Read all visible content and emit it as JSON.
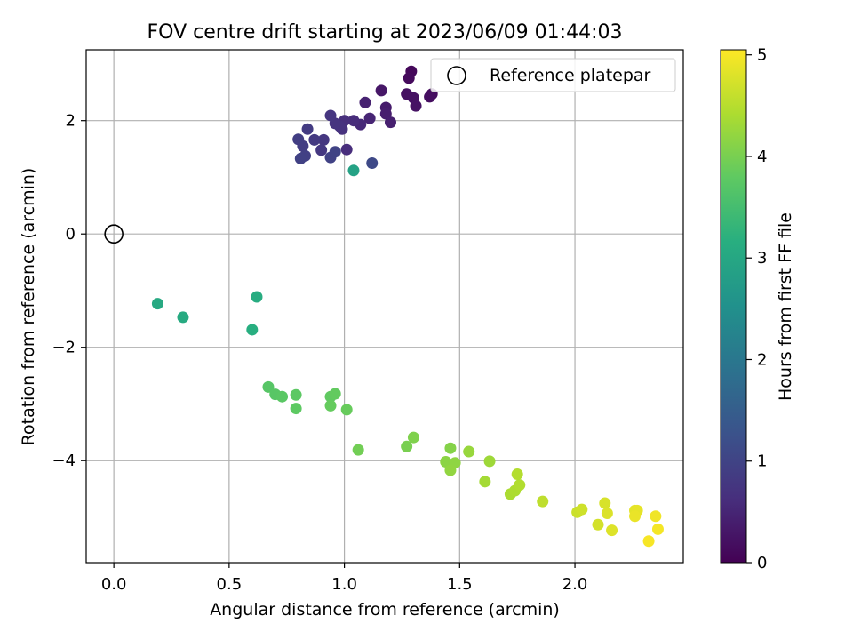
{
  "chart_data": {
    "type": "scatter",
    "title": "FOV centre drift starting at 2023/06/09 01:44:03",
    "xlabel": "Angular distance from reference (arcmin)",
    "ylabel": "Rotation from reference (arcmin)",
    "xlim": [
      -0.12,
      2.47
    ],
    "ylim": [
      -5.8,
      3.25
    ],
    "xticks": [
      0.0,
      0.5,
      1.0,
      1.5,
      2.0
    ],
    "xtick_labels": [
      "0.0",
      "0.5",
      "1.0",
      "1.5",
      "2.0"
    ],
    "yticks": [
      -4,
      -2,
      0,
      2
    ],
    "ytick_labels": [
      "−4",
      "−2",
      "0",
      "2"
    ],
    "grid": true,
    "legend": {
      "placement": "top-right",
      "entries": [
        "Reference platepar"
      ]
    },
    "reference": {
      "x": 0.0,
      "y": 0.0
    },
    "colorbar": {
      "label": "Hours from first FF file",
      "range": [
        0,
        5.05
      ],
      "ticks": [
        0,
        1,
        2,
        3,
        4,
        5
      ],
      "tick_labels": [
        "0",
        "1",
        "2",
        "3",
        "4",
        "5"
      ],
      "colormap": "viridis"
    },
    "points": [
      {
        "x": 1.29,
        "y": 2.87,
        "t": 0.1
      },
      {
        "x": 1.28,
        "y": 2.75,
        "t": 0.12
      },
      {
        "x": 1.38,
        "y": 2.47,
        "t": 0.15
      },
      {
        "x": 1.37,
        "y": 2.42,
        "t": 0.18
      },
      {
        "x": 1.27,
        "y": 2.47,
        "t": 0.2
      },
      {
        "x": 1.3,
        "y": 2.4,
        "t": 0.22
      },
      {
        "x": 1.31,
        "y": 2.26,
        "t": 0.25
      },
      {
        "x": 1.16,
        "y": 2.53,
        "t": 0.3
      },
      {
        "x": 1.18,
        "y": 2.23,
        "t": 0.35
      },
      {
        "x": 1.18,
        "y": 2.12,
        "t": 0.4
      },
      {
        "x": 1.2,
        "y": 1.97,
        "t": 0.42
      },
      {
        "x": 1.09,
        "y": 2.32,
        "t": 0.45
      },
      {
        "x": 1.11,
        "y": 2.04,
        "t": 0.5
      },
      {
        "x": 1.07,
        "y": 1.93,
        "t": 0.55
      },
      {
        "x": 1.04,
        "y": 2.0,
        "t": 0.6
      },
      {
        "x": 1.01,
        "y": 1.49,
        "t": 0.62
      },
      {
        "x": 1.0,
        "y": 2.0,
        "t": 0.65
      },
      {
        "x": 0.99,
        "y": 1.85,
        "t": 0.68
      },
      {
        "x": 0.98,
        "y": 1.9,
        "t": 0.7
      },
      {
        "x": 0.96,
        "y": 1.95,
        "t": 0.72
      },
      {
        "x": 0.94,
        "y": 2.09,
        "t": 0.75
      },
      {
        "x": 0.91,
        "y": 1.66,
        "t": 0.78
      },
      {
        "x": 0.9,
        "y": 1.48,
        "t": 0.8
      },
      {
        "x": 0.87,
        "y": 1.66,
        "t": 0.83
      },
      {
        "x": 0.84,
        "y": 1.85,
        "t": 0.85
      },
      {
        "x": 0.82,
        "y": 1.55,
        "t": 0.88
      },
      {
        "x": 0.8,
        "y": 1.67,
        "t": 0.9
      },
      {
        "x": 0.83,
        "y": 1.38,
        "t": 0.93
      },
      {
        "x": 0.81,
        "y": 1.33,
        "t": 0.95
      },
      {
        "x": 0.94,
        "y": 1.35,
        "t": 0.98
      },
      {
        "x": 0.96,
        "y": 1.45,
        "t": 1.0
      },
      {
        "x": 1.12,
        "y": 1.25,
        "t": 1.1
      },
      {
        "x": 1.04,
        "y": 1.12,
        "t": 2.9
      },
      {
        "x": 0.19,
        "y": -1.23,
        "t": 3.05
      },
      {
        "x": 0.3,
        "y": -1.47,
        "t": 3.08
      },
      {
        "x": 0.62,
        "y": -1.11,
        "t": 3.12
      },
      {
        "x": 0.6,
        "y": -1.69,
        "t": 3.15
      },
      {
        "x": 0.67,
        "y": -2.7,
        "t": 3.7
      },
      {
        "x": 0.7,
        "y": -2.83,
        "t": 3.72
      },
      {
        "x": 0.73,
        "y": -2.87,
        "t": 3.74
      },
      {
        "x": 0.79,
        "y": -2.84,
        "t": 3.76
      },
      {
        "x": 0.79,
        "y": -3.08,
        "t": 3.78
      },
      {
        "x": 0.94,
        "y": -2.87,
        "t": 3.8
      },
      {
        "x": 0.96,
        "y": -2.82,
        "t": 3.82
      },
      {
        "x": 0.94,
        "y": -3.03,
        "t": 3.84
      },
      {
        "x": 1.01,
        "y": -3.1,
        "t": 3.86
      },
      {
        "x": 1.06,
        "y": -3.81,
        "t": 3.95
      },
      {
        "x": 1.27,
        "y": -3.75,
        "t": 4.0
      },
      {
        "x": 1.3,
        "y": -3.59,
        "t": 4.05
      },
      {
        "x": 1.46,
        "y": -3.78,
        "t": 4.1
      },
      {
        "x": 1.44,
        "y": -4.02,
        "t": 4.15
      },
      {
        "x": 1.48,
        "y": -4.04,
        "t": 4.18
      },
      {
        "x": 1.46,
        "y": -4.17,
        "t": 4.2
      },
      {
        "x": 1.54,
        "y": -3.84,
        "t": 4.25
      },
      {
        "x": 1.63,
        "y": -4.01,
        "t": 4.3
      },
      {
        "x": 1.61,
        "y": -4.37,
        "t": 4.35
      },
      {
        "x": 1.72,
        "y": -4.59,
        "t": 4.4
      },
      {
        "x": 1.74,
        "y": -4.53,
        "t": 4.42
      },
      {
        "x": 1.76,
        "y": -4.43,
        "t": 4.45
      },
      {
        "x": 1.75,
        "y": -4.24,
        "t": 4.47
      },
      {
        "x": 1.86,
        "y": -4.72,
        "t": 4.55
      },
      {
        "x": 2.01,
        "y": -4.91,
        "t": 4.65
      },
      {
        "x": 2.03,
        "y": -4.86,
        "t": 4.68
      },
      {
        "x": 2.1,
        "y": -5.13,
        "t": 4.72
      },
      {
        "x": 2.13,
        "y": -4.75,
        "t": 4.75
      },
      {
        "x": 2.14,
        "y": -4.93,
        "t": 4.78
      },
      {
        "x": 2.16,
        "y": -5.23,
        "t": 4.8
      },
      {
        "x": 2.26,
        "y": -4.88,
        "t": 4.85
      },
      {
        "x": 2.27,
        "y": -4.88,
        "t": 4.87
      },
      {
        "x": 2.26,
        "y": -4.98,
        "t": 4.9
      },
      {
        "x": 2.35,
        "y": -4.98,
        "t": 4.95
      },
      {
        "x": 2.36,
        "y": -5.21,
        "t": 4.98
      },
      {
        "x": 2.32,
        "y": -5.42,
        "t": 5.0
      }
    ]
  }
}
